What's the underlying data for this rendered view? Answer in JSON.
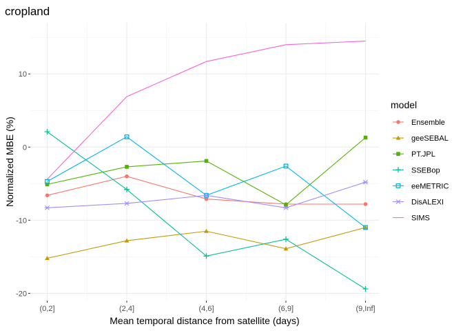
{
  "chart_data": {
    "type": "line",
    "title": "cropland",
    "xlabel": "Mean temporal distance from satellite (days)",
    "ylabel": "Normalized MBE (%)",
    "categories": [
      "(0,2]",
      "(2,4]",
      "(4,6]",
      "(6,9]",
      "(9,Inf]"
    ],
    "ylim": [
      -21,
      17
    ],
    "yticks": [
      -20,
      -10,
      0,
      10
    ],
    "grid": true,
    "legend": {
      "title": "model",
      "position": "right"
    },
    "series": [
      {
        "name": "Ensemble",
        "color": "#F8766D",
        "marker": "circle",
        "values": [
          -6.6,
          -4.0,
          -7.1,
          -7.8,
          -7.8
        ]
      },
      {
        "name": "geeSEBAL",
        "color": "#C49A00",
        "marker": "triangle",
        "values": [
          -15.2,
          -12.8,
          -11.5,
          -13.9,
          -11.0
        ]
      },
      {
        "name": "PT.JPL",
        "color": "#53B400",
        "marker": "square",
        "values": [
          -5.1,
          -2.7,
          -1.9,
          -7.9,
          1.3
        ]
      },
      {
        "name": "SSEBop",
        "color": "#00C094",
        "marker": "plus",
        "values": [
          2.1,
          -5.8,
          -14.9,
          -12.6,
          -19.4
        ]
      },
      {
        "name": "eeMETRIC",
        "color": "#00B6EB",
        "marker": "square-open",
        "values": [
          -4.7,
          1.4,
          -6.6,
          -2.6,
          -11.0
        ]
      },
      {
        "name": "DisALEXI",
        "color": "#A58AFF",
        "marker": "asterisk",
        "values": [
          -8.3,
          -7.7,
          -6.6,
          -8.3,
          -4.8
        ]
      },
      {
        "name": "SIMS",
        "color": "#FB61D7",
        "marker": "none",
        "values": [
          -4.4,
          6.9,
          11.7,
          14.0,
          14.5
        ]
      }
    ]
  }
}
